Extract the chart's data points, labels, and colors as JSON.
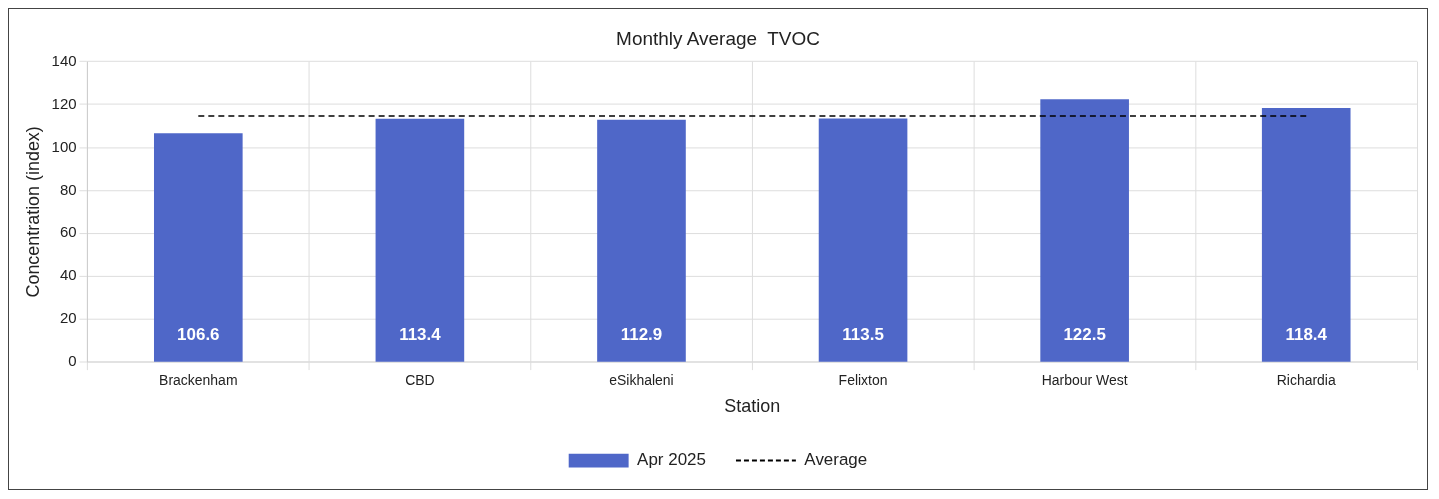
{
  "chart_data": {
    "type": "bar",
    "title": "Monthly Average  TVOC",
    "xlabel": "Station",
    "ylabel": "Concentration (index)",
    "categories": [
      "Brackenham",
      "CBD",
      "eSikhaleni",
      "Felixton",
      "Harbour West",
      "Richardia"
    ],
    "series": [
      {
        "name": "Apr 2025",
        "color": "#4f67c8",
        "values": [
          106.6,
          113.4,
          112.9,
          113.5,
          122.5,
          118.4
        ],
        "value_labels": [
          "106.6",
          "113.4",
          "112.9",
          "113.5",
          "122.5",
          "118.4"
        ]
      },
      {
        "name": "Average",
        "type": "line",
        "color": "#000000",
        "line_style": "dashed",
        "marker": "none",
        "values": [
          114.6,
          114.6,
          114.6,
          114.6,
          114.6,
          114.6
        ]
      }
    ],
    "ylim": [
      0,
      140
    ],
    "yticks": [
      0,
      20,
      40,
      60,
      80,
      100,
      120,
      140
    ],
    "grid": true,
    "legend": "bottom"
  }
}
